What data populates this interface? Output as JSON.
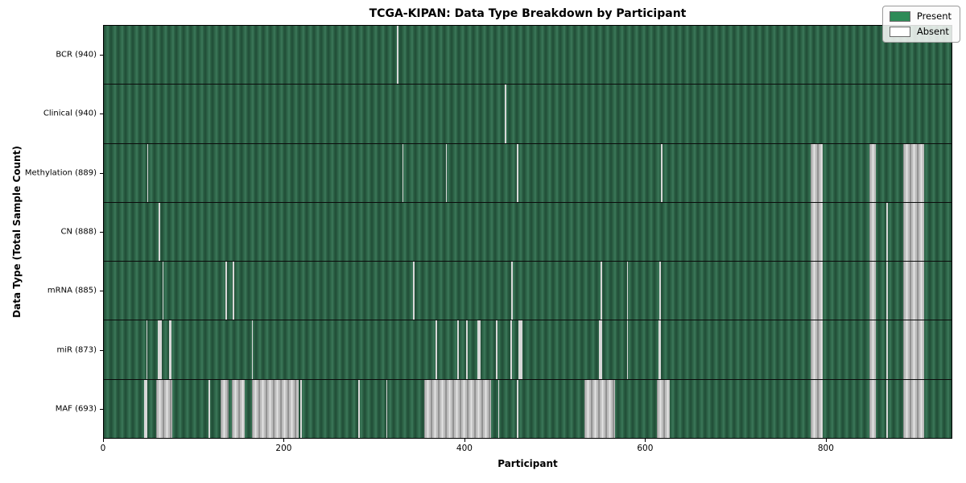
{
  "chart_data": {
    "type": "heatmap",
    "title": "TCGA-KIPAN: Data Type Breakdown by Participant",
    "xlabel": "Participant",
    "ylabel": "Data Type (Total Sample Count)",
    "xlim": [
      0,
      940
    ],
    "x_ticks": [
      0,
      200,
      400,
      600,
      800
    ],
    "grid": false,
    "legend": {
      "position": "upper-right",
      "entries": [
        {
          "label": "Present",
          "color": "#2e8b57"
        },
        {
          "label": "Absent",
          "color": "#ffffff"
        }
      ]
    },
    "colors": {
      "present": "#2e8b57",
      "absent": "#ffffff",
      "row_edge": "#000000"
    },
    "rows": [
      {
        "name": "BCR",
        "label": "BCR (940)",
        "total_samples": 940,
        "absent_ranges": [
          [
            325,
            326.5
          ]
        ]
      },
      {
        "name": "Clinical",
        "label": "Clinical (940)",
        "total_samples": 940,
        "absent_ranges": [
          [
            445,
            446.5
          ]
        ]
      },
      {
        "name": "Methylation",
        "label": "Methylation (889)",
        "total_samples": 889,
        "absent_ranges": [
          [
            48,
            49.5
          ],
          [
            331,
            332.5
          ],
          [
            379,
            380.5
          ],
          [
            458,
            459.5
          ],
          [
            618,
            619.5
          ],
          [
            784,
            797
          ],
          [
            849,
            856
          ],
          [
            886,
            910
          ]
        ]
      },
      {
        "name": "CN",
        "label": "CN (888)",
        "total_samples": 888,
        "absent_ranges": [
          [
            61,
            62.5
          ],
          [
            784,
            797
          ],
          [
            849,
            856
          ],
          [
            868,
            869.5
          ],
          [
            886,
            910
          ]
        ]
      },
      {
        "name": "mRNA",
        "label": "mRNA (885)",
        "total_samples": 885,
        "absent_ranges": [
          [
            65,
            66.5
          ],
          [
            135,
            136.5
          ],
          [
            143,
            144.5
          ],
          [
            343,
            344.5
          ],
          [
            452,
            453.5
          ],
          [
            551,
            552.5
          ],
          [
            580,
            581.5
          ],
          [
            616,
            617.5
          ],
          [
            784,
            797
          ],
          [
            849,
            856
          ],
          [
            868,
            869.5
          ],
          [
            886,
            910
          ]
        ]
      },
      {
        "name": "miR",
        "label": "miR (873)",
        "total_samples": 873,
        "absent_ranges": [
          [
            47,
            48.5
          ],
          [
            60,
            64
          ],
          [
            72,
            75
          ],
          [
            164,
            165.5
          ],
          [
            368,
            369.5
          ],
          [
            392,
            393.5
          ],
          [
            402,
            403.5
          ],
          [
            414,
            417.5
          ],
          [
            435,
            436.5
          ],
          [
            451,
            452.5
          ],
          [
            460,
            464
          ],
          [
            549,
            552.5
          ],
          [
            580,
            581.5
          ],
          [
            615,
            618
          ],
          [
            784,
            797
          ],
          [
            849,
            856
          ],
          [
            868,
            869.5
          ],
          [
            886,
            910
          ]
        ]
      },
      {
        "name": "MAF",
        "label": "MAF (693)",
        "total_samples": 693,
        "absent_ranges": [
          [
            45,
            48.5
          ],
          [
            58,
            76
          ],
          [
            116,
            118
          ],
          [
            129,
            138
          ],
          [
            142,
            156
          ],
          [
            164,
            216
          ],
          [
            218,
            219.5
          ],
          [
            282,
            283.5
          ],
          [
            313,
            314.5
          ],
          [
            355,
            429
          ],
          [
            437,
            438.5
          ],
          [
            458,
            459.5
          ],
          [
            533,
            567
          ],
          [
            613,
            628
          ],
          [
            784,
            797
          ],
          [
            849,
            856
          ],
          [
            868,
            869.5
          ],
          [
            886,
            910
          ]
        ]
      }
    ]
  }
}
